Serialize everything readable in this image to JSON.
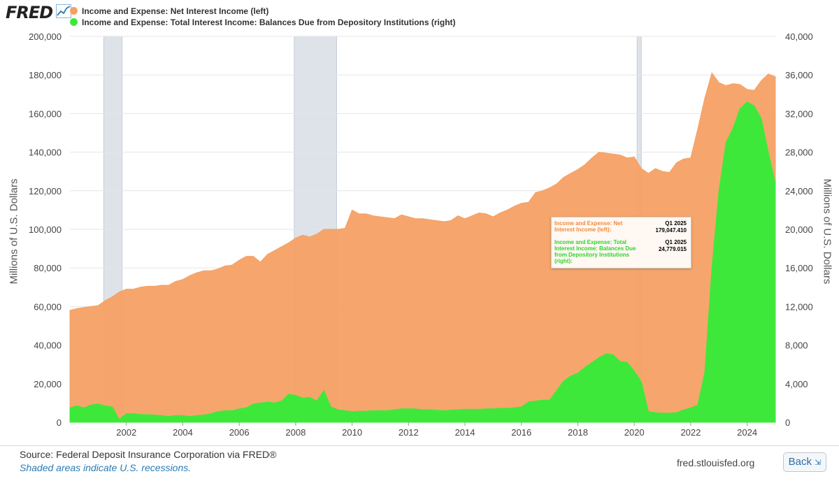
{
  "header": {
    "logo": "FRED",
    "legend": [
      {
        "label": "Income and Expense: Net Interest Income (left)",
        "color": "#f5a164"
      },
      {
        "label": "Income and Expense: Total Interest Income: Balances Due from Depository Institutions (right)",
        "color": "#3ee83a"
      }
    ]
  },
  "axes": {
    "left_title": "Millions of U.S. Dollars",
    "right_title": "Millions of U.S. Dollars"
  },
  "tooltip": {
    "series1_label": "Income and Expense: Net Interest Income (left):",
    "series1_date": "Q1 2025",
    "series1_value": "179,047.410",
    "series2_label": "Income and Expense: Total Interest Income: Balances Due from Depository Institutions (right):",
    "series2_date": "Q1 2025",
    "series2_value": "24,779.015"
  },
  "footer": {
    "source": "Source: Federal Deposit Insurance Corporation via FRED®",
    "note": "Shaded areas indicate U.S. recessions.",
    "site": "fred.stlouisfed.org",
    "back_label": "Back"
  },
  "colors": {
    "net_interest": "#f5a164",
    "balances_due": "#3ee83a",
    "recession": "#dde3e9",
    "tooltip_orange": "#f08a3c",
    "tooltip_green": "#2bd42b"
  },
  "chart_data": {
    "type": "area",
    "x_ticks": [
      "2002",
      "2004",
      "2006",
      "2008",
      "2010",
      "2012",
      "2014",
      "2016",
      "2018",
      "2020",
      "2022",
      "2024"
    ],
    "left_ticks": [
      "0",
      "20,000",
      "40,000",
      "60,000",
      "80,000",
      "100,000",
      "120,000",
      "140,000",
      "160,000",
      "180,000",
      "200,000"
    ],
    "right_ticks": [
      "0",
      "4,000",
      "8,000",
      "12,000",
      "16,000",
      "20,000",
      "24,000",
      "28,000",
      "32,000",
      "36,000",
      "40,000"
    ],
    "xlim": [
      2000.0,
      2025.0
    ],
    "ylim_left": [
      0,
      200000
    ],
    "ylim_right": [
      0,
      40000
    ],
    "recessions": [
      [
        2001.2,
        2001.85
      ],
      [
        2007.95,
        2009.45
      ],
      [
        2020.1,
        2020.25
      ]
    ],
    "series": [
      {
        "name": "Income and Expense: Net Interest Income (left)",
        "axis": "left",
        "x": [
          2000.0,
          2000.25,
          2000.5,
          2000.75,
          2001.0,
          2001.25,
          2001.5,
          2001.75,
          2002.0,
          2002.25,
          2002.5,
          2002.75,
          2003.0,
          2003.25,
          2003.5,
          2003.75,
          2004.0,
          2004.25,
          2004.5,
          2004.75,
          2005.0,
          2005.25,
          2005.5,
          2005.75,
          2006.0,
          2006.25,
          2006.5,
          2006.75,
          2007.0,
          2007.25,
          2007.5,
          2007.75,
          2008.0,
          2008.25,
          2008.5,
          2008.75,
          2009.0,
          2009.25,
          2009.5,
          2009.75,
          2010.0,
          2010.25,
          2010.5,
          2010.75,
          2011.0,
          2011.25,
          2011.5,
          2011.75,
          2012.0,
          2012.25,
          2012.5,
          2012.75,
          2013.0,
          2013.25,
          2013.5,
          2013.75,
          2014.0,
          2014.25,
          2014.5,
          2014.75,
          2015.0,
          2015.25,
          2015.5,
          2015.75,
          2016.0,
          2016.25,
          2016.5,
          2016.75,
          2017.0,
          2017.25,
          2017.5,
          2017.75,
          2018.0,
          2018.25,
          2018.5,
          2018.75,
          2019.0,
          2019.25,
          2019.5,
          2019.75,
          2020.0,
          2020.25,
          2020.5,
          2020.75,
          2021.0,
          2021.25,
          2021.5,
          2021.75,
          2022.0,
          2022.25,
          2022.5,
          2022.75,
          2023.0,
          2023.25,
          2023.5,
          2023.75,
          2024.0,
          2024.25,
          2024.5,
          2024.75,
          2025.0
        ],
        "values": [
          58000,
          59000,
          59500,
          60000,
          60500,
          63000,
          65000,
          67500,
          69000,
          69000,
          70000,
          70500,
          70500,
          71000,
          71000,
          73000,
          74000,
          76000,
          77500,
          78500,
          78500,
          79500,
          81000,
          81500,
          84000,
          86000,
          86000,
          83000,
          87000,
          89000,
          91000,
          93000,
          95500,
          97000,
          96000,
          97500,
          100000,
          100000,
          100000,
          100500,
          110000,
          108000,
          108000,
          107000,
          106500,
          106000,
          105500,
          107500,
          106500,
          105500,
          105500,
          105000,
          104500,
          104000,
          104500,
          107000,
          105500,
          107000,
          108500,
          108000,
          106500,
          108500,
          110000,
          112000,
          113500,
          114000,
          119000,
          120000,
          121500,
          123500,
          127000,
          129000,
          131000,
          133500,
          137000,
          140000,
          139500,
          139000,
          138500,
          137000,
          137500,
          131500,
          129000,
          131500,
          130000,
          129500,
          134500,
          136500,
          137000,
          152000,
          168000,
          181000,
          176000,
          174500,
          175500,
          175000,
          172500,
          172000,
          177000,
          180500,
          179047.41
        ]
      },
      {
        "name": "Income and Expense: Total Interest Income: Balances Due from Depository Institutions (right)",
        "axis": "right",
        "x": [
          2000.0,
          2000.25,
          2000.5,
          2000.75,
          2001.0,
          2001.25,
          2001.5,
          2001.75,
          2002.0,
          2002.25,
          2002.5,
          2002.75,
          2003.0,
          2003.25,
          2003.5,
          2003.75,
          2004.0,
          2004.25,
          2004.5,
          2004.75,
          2005.0,
          2005.25,
          2005.5,
          2005.75,
          2006.0,
          2006.25,
          2006.5,
          2006.75,
          2007.0,
          2007.25,
          2007.5,
          2007.75,
          2008.0,
          2008.25,
          2008.5,
          2008.75,
          2009.0,
          2009.25,
          2009.5,
          2009.75,
          2010.0,
          2010.25,
          2010.5,
          2010.75,
          2011.0,
          2011.25,
          2011.5,
          2011.75,
          2012.0,
          2012.25,
          2012.5,
          2012.75,
          2013.0,
          2013.25,
          2013.5,
          2013.75,
          2014.0,
          2014.25,
          2014.5,
          2014.75,
          2015.0,
          2015.25,
          2015.5,
          2015.75,
          2016.0,
          2016.25,
          2016.5,
          2016.75,
          2017.0,
          2017.25,
          2017.5,
          2017.75,
          2018.0,
          2018.25,
          2018.5,
          2018.75,
          2019.0,
          2019.25,
          2019.5,
          2019.75,
          2020.0,
          2020.25,
          2020.5,
          2020.75,
          2021.0,
          2021.25,
          2021.5,
          2021.75,
          2022.0,
          2022.25,
          2022.5,
          2022.75,
          2023.0,
          2023.25,
          2023.5,
          2023.75,
          2024.0,
          2024.25,
          2024.5,
          2024.75,
          2025.0
        ],
        "values": [
          1500,
          1700,
          1500,
          1800,
          1900,
          1700,
          1600,
          300,
          900,
          900,
          800,
          800,
          750,
          700,
          600,
          700,
          700,
          600,
          700,
          750,
          900,
          1100,
          1200,
          1200,
          1400,
          1500,
          1900,
          2000,
          2100,
          2000,
          2200,
          2900,
          2800,
          2500,
          2600,
          2200,
          3300,
          1600,
          1300,
          1200,
          1100,
          1150,
          1150,
          1200,
          1200,
          1200,
          1300,
          1400,
          1400,
          1400,
          1300,
          1300,
          1250,
          1200,
          1250,
          1300,
          1350,
          1350,
          1350,
          1400,
          1400,
          1450,
          1450,
          1500,
          1600,
          2100,
          2200,
          2300,
          2300,
          3300,
          4300,
          4800,
          5100,
          5700,
          6200,
          6700,
          7100,
          7000,
          6300,
          6200,
          5300,
          4200,
          1100,
          1000,
          950,
          950,
          1000,
          1300,
          1500,
          1800,
          5200,
          16000,
          24000,
          29000,
          30500,
          32500,
          33200,
          32800,
          31500,
          28000,
          24779.015
        ]
      }
    ]
  }
}
